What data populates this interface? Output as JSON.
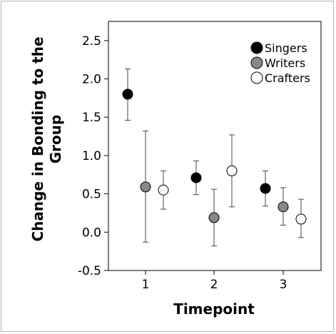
{
  "chart_data": {
    "type": "scatter",
    "x_categories": [
      "1",
      "2",
      "3"
    ],
    "xlabel": "Timepoint",
    "ylabel_lines": [
      "Change in Bonding to the",
      "Group"
    ],
    "ylim": [
      -0.5,
      2.75
    ],
    "yticks": [
      "-0.5",
      "0.0",
      "0.5",
      "1.0",
      "1.5",
      "2.0",
      "2.5"
    ],
    "yticks_values": [
      -0.5,
      0.0,
      0.5,
      1.0,
      1.5,
      2.0,
      2.5
    ],
    "grid": false,
    "legend_position": "top-right",
    "error_bars": true,
    "series": [
      {
        "name": "Singers",
        "fill": "#000000",
        "points": [
          {
            "x": "1",
            "y": 1.8,
            "low": 1.46,
            "high": 2.13
          },
          {
            "x": "2",
            "y": 0.71,
            "low": 0.49,
            "high": 0.93
          },
          {
            "x": "3",
            "y": 0.57,
            "low": 0.34,
            "high": 0.8
          }
        ]
      },
      {
        "name": "Writers",
        "fill": "#888888",
        "points": [
          {
            "x": "1",
            "y": 0.59,
            "low": -0.13,
            "high": 1.32
          },
          {
            "x": "2",
            "y": 0.19,
            "low": -0.18,
            "high": 0.56
          },
          {
            "x": "3",
            "y": 0.33,
            "low": 0.09,
            "high": 0.58
          }
        ]
      },
      {
        "name": "Crafters",
        "fill": "#ffffff",
        "points": [
          {
            "x": "1",
            "y": 0.55,
            "low": 0.3,
            "high": 0.8
          },
          {
            "x": "2",
            "y": 0.8,
            "low": 0.33,
            "high": 1.27
          },
          {
            "x": "3",
            "y": 0.17,
            "low": -0.07,
            "high": 0.43
          }
        ]
      }
    ]
  }
}
